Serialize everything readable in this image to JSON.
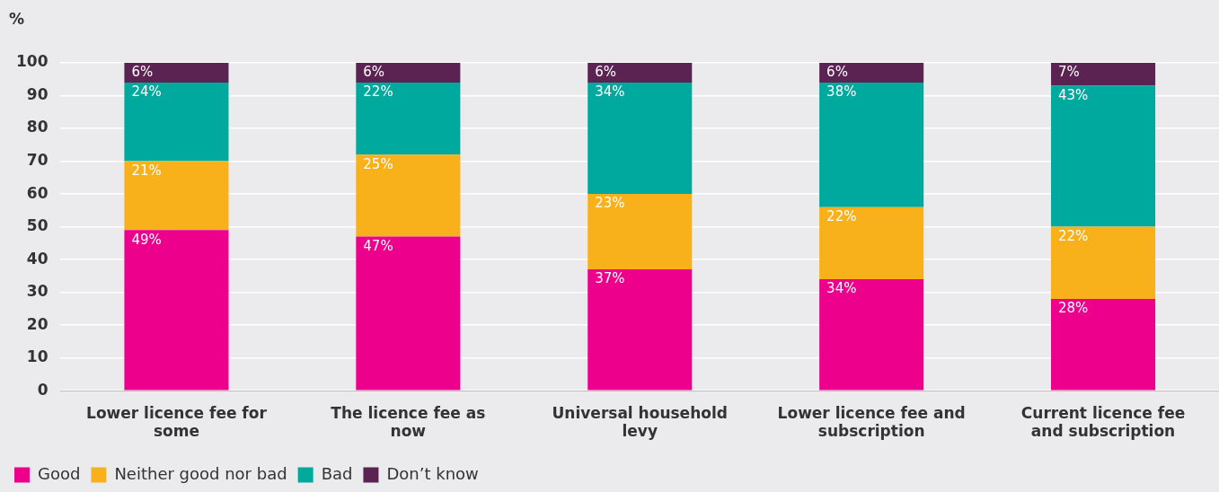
{
  "chart_data": {
    "type": "bar",
    "stacked": true,
    "ylabel": "%",
    "categories": [
      "Lower licence fee for some",
      "The licence fee as now",
      "Universal household levy",
      "Lower licence fee and subscription",
      "Current licence fee and subscription"
    ],
    "series": [
      {
        "name": "Good",
        "color": "#ec008c",
        "values": [
          49,
          47,
          37,
          34,
          28
        ],
        "value_labels": [
          "49%",
          "47%",
          "37%",
          "34%",
          "28%"
        ]
      },
      {
        "name": "Neither good nor bad",
        "color": "#f9b11b",
        "values": [
          21,
          25,
          23,
          22,
          22
        ],
        "value_labels": [
          "21%",
          "25%",
          "23%",
          "22%",
          "22%"
        ]
      },
      {
        "name": "Bad",
        "color": "#00a99d",
        "values": [
          24,
          22,
          34,
          38,
          43
        ],
        "value_labels": [
          "24%",
          "22%",
          "34%",
          "38%",
          "43%"
        ]
      },
      {
        "name": "Don’t know",
        "color": "#5b2352",
        "values": [
          6,
          6,
          6,
          6,
          7
        ],
        "value_labels": [
          "6%",
          "6%",
          "6%",
          "6%",
          "7%"
        ]
      }
    ],
    "ylim": [
      0,
      100
    ],
    "yticks": [
      0,
      10,
      20,
      30,
      40,
      50,
      60,
      70,
      80,
      90,
      100
    ],
    "grid": "y",
    "legend": "bottom left"
  }
}
